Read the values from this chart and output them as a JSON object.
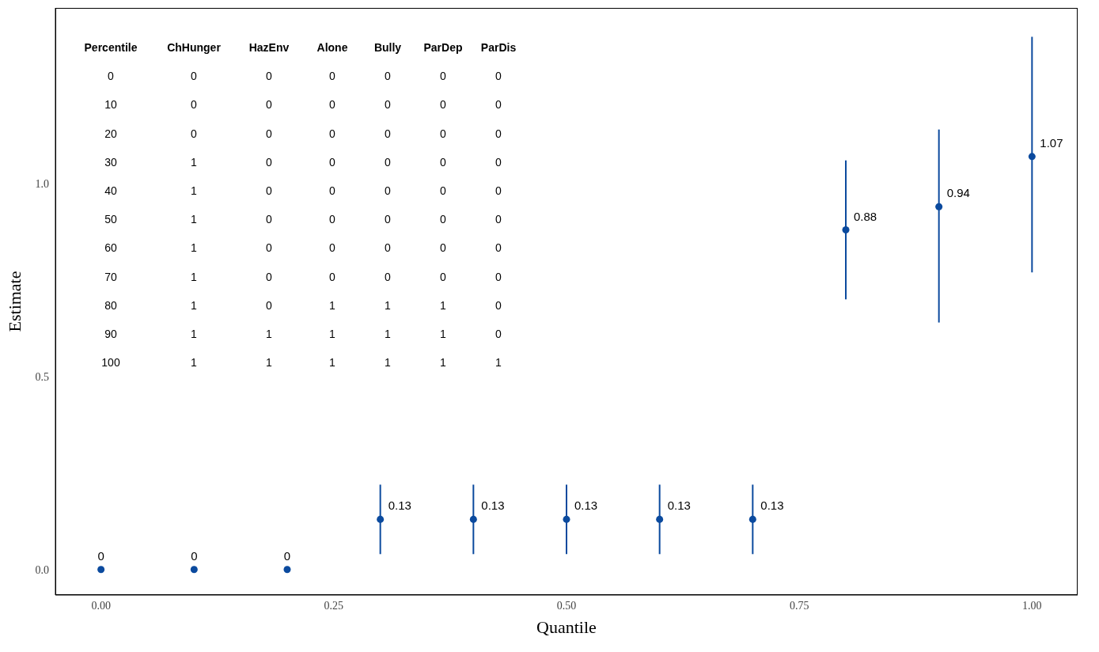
{
  "chart_data": {
    "type": "scatter",
    "xlabel": "Quantile",
    "ylabel": "Estimate",
    "x": [
      0,
      0.1,
      0.2,
      0.3,
      0.4,
      0.5,
      0.6,
      0.7,
      0.8,
      0.9,
      1.0
    ],
    "values": [
      0,
      0,
      0,
      0.13,
      0.13,
      0.13,
      0.13,
      0.13,
      0.88,
      0.94,
      1.07
    ],
    "errors": [
      null,
      null,
      null,
      [
        0.04,
        0.22
      ],
      [
        0.04,
        0.22
      ],
      [
        0.04,
        0.22
      ],
      [
        0.04,
        0.22
      ],
      [
        0.04,
        0.22
      ],
      [
        0.7,
        1.06
      ],
      [
        0.64,
        1.14
      ],
      [
        0.77,
        1.38
      ]
    ],
    "color": "#0b4a9e",
    "marker": "circle",
    "data_labels": true,
    "grid": false,
    "legend": false,
    "xlim": [
      -0.049,
      1.049
    ],
    "xticks": [
      {
        "value": 0,
        "label": "0.00"
      },
      {
        "value": 0.25,
        "label": "0.25"
      },
      {
        "value": 0.5,
        "label": "0.50"
      },
      {
        "value": 0.75,
        "label": "0.75"
      },
      {
        "value": 1,
        "label": "1.00"
      }
    ],
    "ylim": [
      -0.066,
      1.455
    ],
    "yticks": [
      {
        "value": 0,
        "label": "0.0"
      },
      {
        "value": 0.5,
        "label": "0.5"
      },
      {
        "value": 1,
        "label": "1.0"
      }
    ],
    "annotations": [
      "Percentile ChHunger HazEnv Alone Bully ParDep ParDis",
      "0 0 0 0 0 0 0",
      "10 0 0 0 0 0 0",
      "20 0 0 0 0 0 0",
      "30 1 0 0 0 0 0",
      "40 1 0 0 0 0 0",
      "50 1 0 0 0 0 0",
      "60 1 0 0 0 0 0",
      "70 1 0 0 0 0 0",
      "80 1 0 1 1 1 0",
      "90 1 1 1 1 1 0",
      "100 1 1 1 1 1 1"
    ]
  }
}
